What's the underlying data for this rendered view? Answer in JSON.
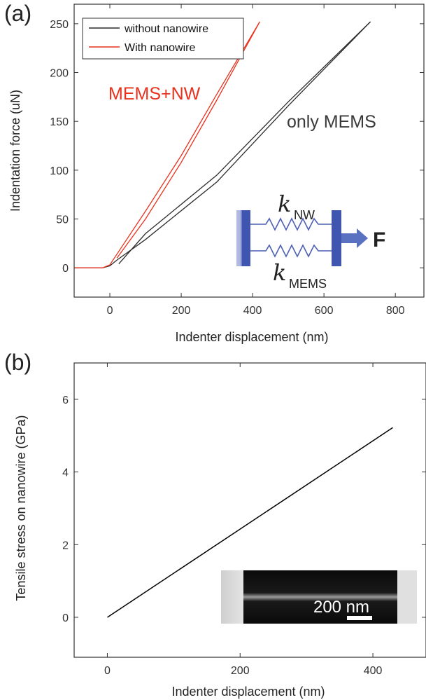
{
  "colors": {
    "without_nanowire": "#2b2b2b",
    "with_nanowire": "#e8321e",
    "annotation_red": "#e8321e",
    "annotation_gray": "#3a3a3a",
    "spring_blue": "#4a5fb5",
    "plate_blue": "#3f55b0"
  },
  "chart_data": [
    {
      "panel_label": "(a)",
      "type": "line",
      "xlabel": "Indenter displacement (nm)",
      "ylabel": "Indentation force (uN)",
      "xlim": [
        -100,
        880
      ],
      "ylim": [
        -30,
        270
      ],
      "xticks": [
        0,
        200,
        400,
        600,
        800
      ],
      "yticks": [
        0,
        50,
        100,
        150,
        200,
        250
      ],
      "legend_position": "top-left",
      "series": [
        {
          "name": "without nanowire",
          "color": "#2b2b2b",
          "loading": {
            "x": [
              -100,
              -20,
              0,
              20,
              100,
              300,
              500,
              730
            ],
            "y": [
              0,
              0,
              2,
              8,
              29,
              88,
              166,
              252
            ]
          },
          "unloading": {
            "x": [
              730,
              500,
              300,
              100,
              25
            ],
            "y": [
              252,
              170,
              95,
              35,
              4
            ]
          }
        },
        {
          "name": "With nanowire",
          "color": "#e8321e",
          "loading": {
            "x": [
              -100,
              -20,
              0,
              20,
              100,
              200,
              300,
              420
            ],
            "y": [
              0,
              0,
              3,
              14,
              58,
              115,
              178,
              252
            ]
          },
          "unloading": {
            "x": [
              420,
              300,
              200,
              100,
              20
            ],
            "y": [
              252,
              172,
              108,
              50,
              10
            ]
          }
        }
      ],
      "annotations": [
        {
          "text": "MEMS+NW",
          "x": 160,
          "y": 187,
          "color": "#e8321e"
        },
        {
          "text": "only MEMS",
          "x": 510,
          "y": 158,
          "color": "#3a3a3a"
        }
      ],
      "inset": {
        "k_symbol": "k",
        "top_subscript": "NW",
        "bottom_subscript": "MEMS",
        "force_label": "F"
      }
    },
    {
      "panel_label": "(b)",
      "type": "line",
      "xlabel": "Indenter displacement (nm)",
      "ylabel": "Tensile stress on nanowire (GPa)",
      "xlim": [
        -50,
        480
      ],
      "ylim": [
        -1.1,
        7.0
      ],
      "xticks": [
        0,
        200,
        400
      ],
      "yticks": [
        0,
        2,
        4,
        6
      ],
      "series": [
        {
          "color": "#000000",
          "x": [
            0,
            430
          ],
          "y": [
            0,
            5.22
          ]
        }
      ],
      "inset_image": {
        "scale_bar_label": "200 nm"
      }
    }
  ]
}
